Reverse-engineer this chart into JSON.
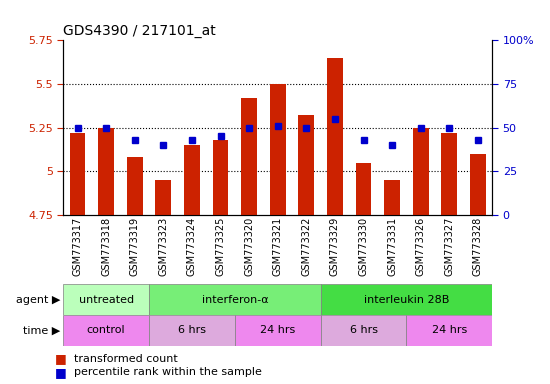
{
  "title": "GDS4390 / 217101_at",
  "samples": [
    "GSM773317",
    "GSM773318",
    "GSM773319",
    "GSM773323",
    "GSM773324",
    "GSM773325",
    "GSM773320",
    "GSM773321",
    "GSM773322",
    "GSM773329",
    "GSM773330",
    "GSM773331",
    "GSM773326",
    "GSM773327",
    "GSM773328"
  ],
  "bar_values": [
    5.22,
    5.25,
    5.08,
    4.95,
    5.15,
    5.18,
    5.42,
    5.5,
    5.32,
    5.65,
    5.05,
    4.95,
    5.25,
    5.22,
    5.1
  ],
  "dot_percentiles": [
    50,
    50,
    43,
    40,
    43,
    45,
    50,
    51,
    50,
    55,
    43,
    40,
    50,
    50,
    43
  ],
  "ylim_left": [
    4.75,
    5.75
  ],
  "ylim_right": [
    0,
    100
  ],
  "yticks_left": [
    4.75,
    5.0,
    5.25,
    5.5,
    5.75
  ],
  "ytick_labels_left": [
    "4.75",
    "5",
    "5.25",
    "5.5",
    "5.75"
  ],
  "yticks_right": [
    0,
    25,
    50,
    75,
    100
  ],
  "ytick_labels_right": [
    "0",
    "25",
    "50",
    "75",
    "100%"
  ],
  "bar_color": "#cc2200",
  "dot_color": "#0000cc",
  "bar_bottom": 4.75,
  "bar_width": 0.55,
  "agent_groups": [
    {
      "label": "untreated",
      "start": 0,
      "end": 3,
      "color": "#bbffbb"
    },
    {
      "label": "interferon-α",
      "start": 3,
      "end": 9,
      "color": "#77ee77"
    },
    {
      "label": "interleukin 28B",
      "start": 9,
      "end": 15,
      "color": "#44dd44"
    }
  ],
  "time_groups": [
    {
      "label": "control",
      "start": 0,
      "end": 3,
      "color": "#ee88ee"
    },
    {
      "label": "6 hrs",
      "start": 3,
      "end": 6,
      "color": "#ddaadd"
    },
    {
      "label": "24 hrs",
      "start": 6,
      "end": 9,
      "color": "#ee88ee"
    },
    {
      "label": "6 hrs",
      "start": 9,
      "end": 12,
      "color": "#ddaadd"
    },
    {
      "label": "24 hrs",
      "start": 12,
      "end": 15,
      "color": "#ee88ee"
    }
  ],
  "grid_dotted_at": [
    5.0,
    5.25,
    5.5
  ],
  "bg_color": "#ffffff",
  "label_fontsize": 8,
  "tick_fontsize": 8,
  "sample_fontsize": 7
}
